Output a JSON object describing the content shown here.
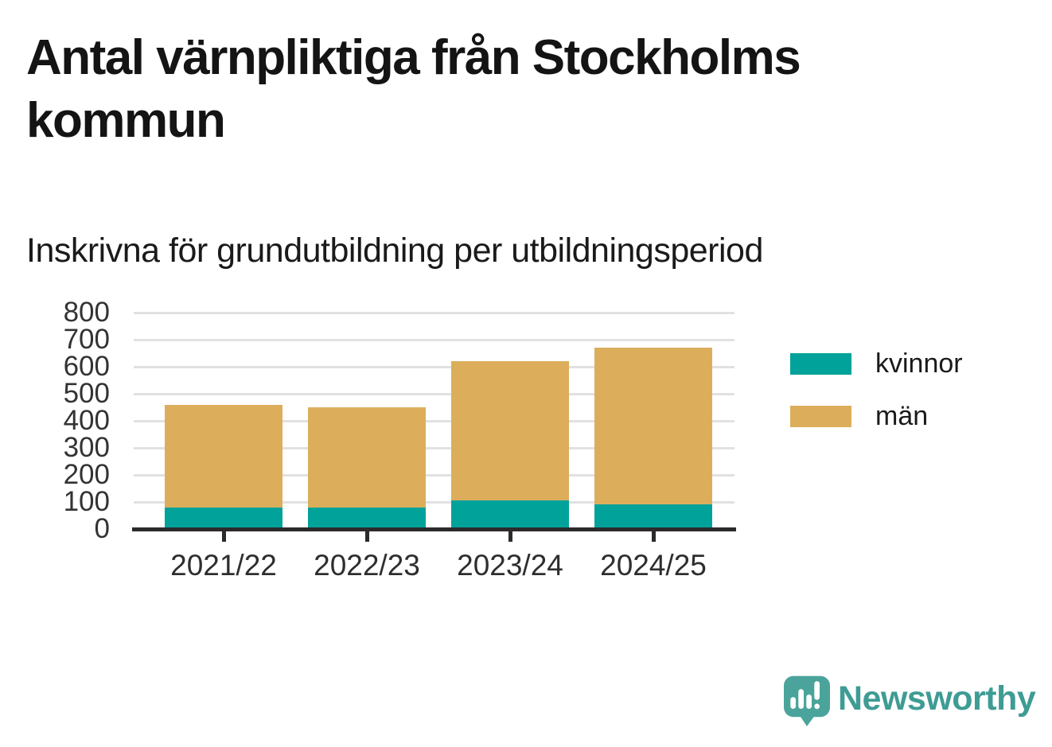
{
  "header": {
    "title": "Antal värnpliktiga från Stockholms kommun",
    "subtitle": "Inskrivna för grundutbildning per utbildningsperiod"
  },
  "chart_data": {
    "type": "bar",
    "stacked": true,
    "title": "Antal värnpliktiga från Stockholms kommun",
    "subtitle": "Inskrivna för grundutbildning per utbildningsperiod",
    "categories": [
      "2021/22",
      "2022/23",
      "2023/24",
      "2024/25"
    ],
    "series": [
      {
        "name": "kvinnor",
        "color": "#00a29a",
        "values": [
          80,
          80,
          105,
          90
        ]
      },
      {
        "name": "män",
        "color": "#dcae5c",
        "values": [
          380,
          370,
          515,
          580
        ]
      }
    ],
    "totals": [
      460,
      450,
      620,
      670
    ],
    "xlabel": "",
    "ylabel": "",
    "ylim": [
      0,
      800
    ],
    "yticks": [
      0,
      100,
      200,
      300,
      400,
      500,
      600,
      700,
      800
    ],
    "grid": "horizontal",
    "legend_position": "right",
    "axis_color": "#2b2b2b",
    "gridline_color": "#e1e1e1"
  },
  "branding": {
    "wordmark": "Newsworthy",
    "logo_color": "#4ba49b",
    "wordmark_color": "#3e9c94"
  }
}
